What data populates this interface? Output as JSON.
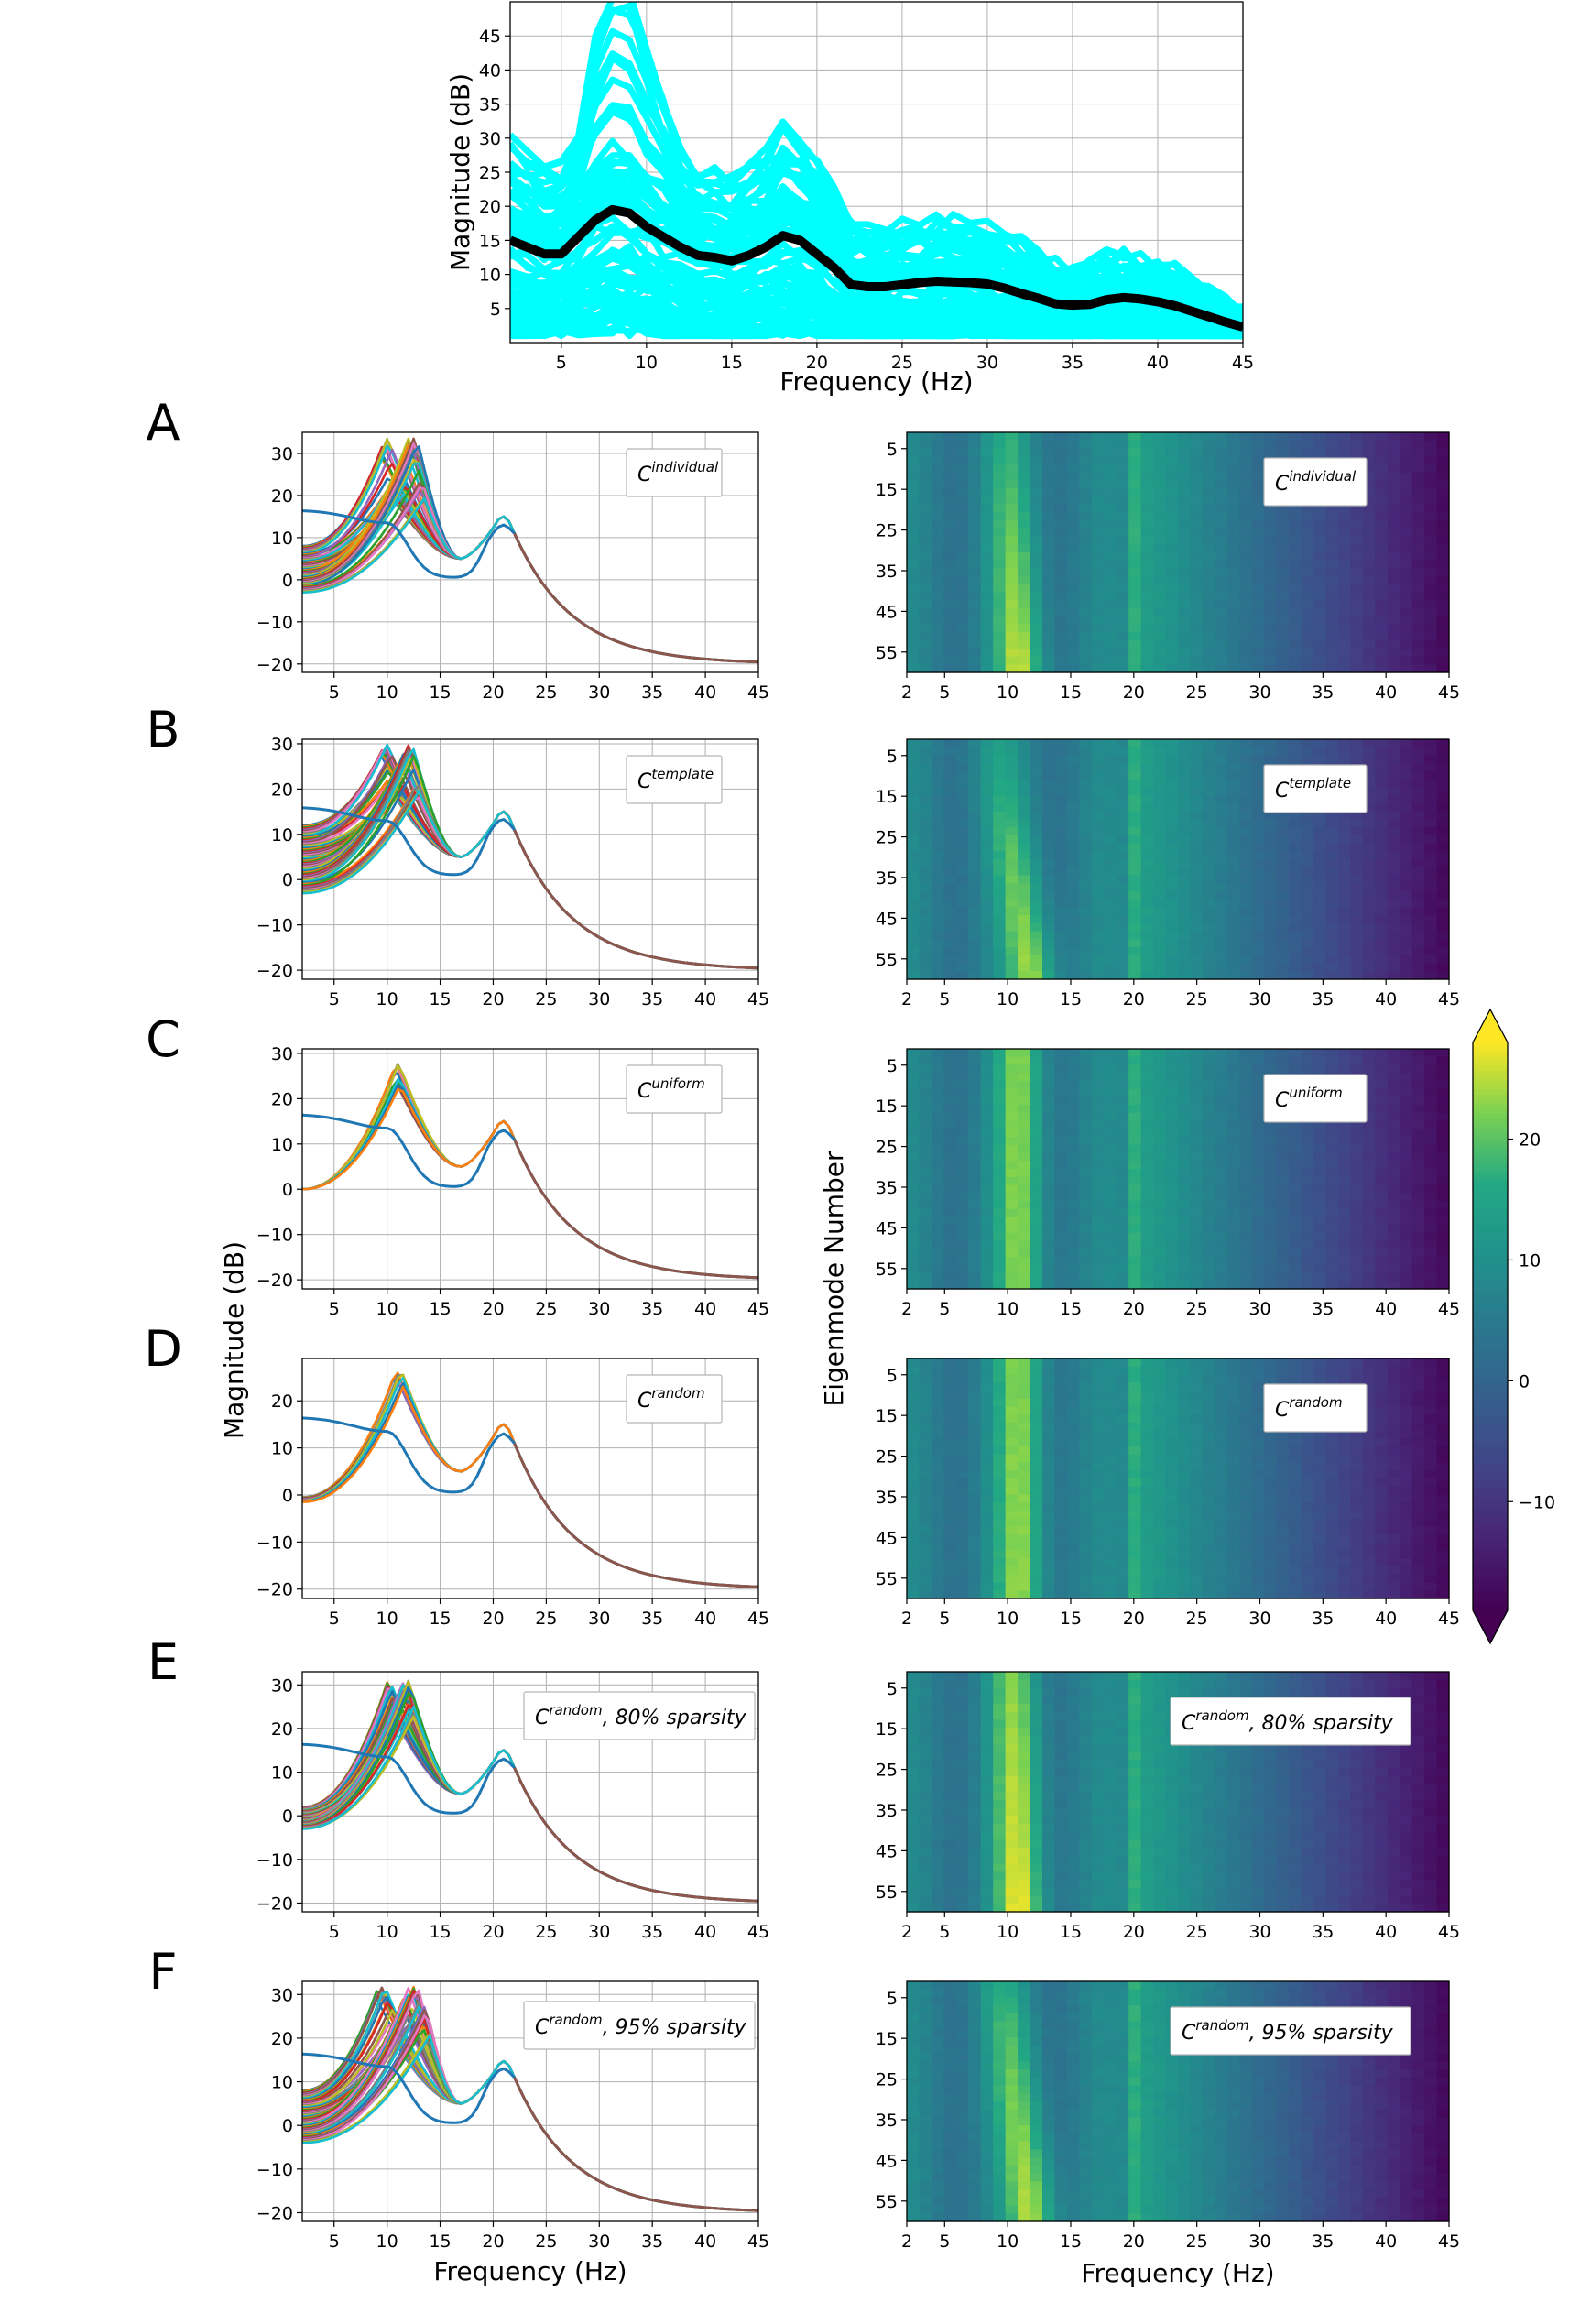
{
  "chart_data": [
    {
      "id": "top",
      "type": "line",
      "xlabel": "Frequency (Hz)",
      "ylabel": "Magnitude (dB)",
      "xlim": [
        2,
        45
      ],
      "ylim": [
        0,
        50
      ],
      "xticks": [
        5,
        10,
        15,
        20,
        25,
        30,
        35,
        40,
        45
      ],
      "yticks": [
        5,
        10,
        15,
        20,
        25,
        30,
        35,
        40,
        45
      ],
      "grid": true,
      "series": [
        {
          "role": "individual",
          "color": "#00ffff",
          "count": 68
        },
        {
          "role": "mean",
          "color": "#000000",
          "x": [
            2,
            3,
            4,
            5,
            6,
            7,
            8,
            9,
            10,
            11,
            12,
            13,
            14,
            15,
            16,
            17,
            18,
            19,
            20,
            21,
            22,
            23,
            24,
            25,
            26,
            27,
            28,
            29,
            30,
            31,
            32,
            33,
            34,
            35,
            36,
            37,
            38,
            39,
            40,
            41,
            42,
            43,
            44,
            45
          ],
          "y": [
            15,
            14,
            13,
            13,
            15.5,
            18,
            19.5,
            19,
            17,
            15.5,
            14,
            12.8,
            12.5,
            12,
            12.8,
            14,
            15.7,
            15,
            13,
            11,
            8.5,
            8.2,
            8.2,
            8.5,
            8.8,
            9,
            8.9,
            8.8,
            8.6,
            8,
            7.2,
            6.5,
            5.7,
            5.5,
            5.6,
            6.3,
            6.6,
            6.4,
            6,
            5.4,
            4.6,
            3.8,
            3,
            2.3
          ]
        }
      ]
    },
    {
      "id": "A",
      "label": "A",
      "type": "line",
      "legend": {
        "base": "C",
        "sup": "individual",
        "suffix": ""
      },
      "xlim": [
        2,
        45
      ],
      "ylim": [
        -22,
        35
      ],
      "xticks": [
        5,
        10,
        15,
        20,
        25,
        30,
        35,
        40,
        45
      ],
      "yticks": [
        -20,
        -10,
        0,
        10,
        20,
        30
      ],
      "grid": true,
      "bundle": {
        "count": 60,
        "low_start": -3,
        "high_start": 8,
        "peak_min": 19,
        "peak_max": 34,
        "peak_f_min": 9.5,
        "peak_f_max": 13.5,
        "second_peak": 13.5
      },
      "empirical": {
        "color": "#1f77b4",
        "start": 16.5,
        "alpha_peak": 13.5,
        "alpha_f": 10,
        "trough": 0.5,
        "beta_peak": 11.5
      }
    },
    {
      "id": "B",
      "label": "B",
      "type": "line",
      "legend": {
        "base": "C",
        "sup": "template",
        "suffix": ""
      },
      "xlim": [
        2,
        45
      ],
      "ylim": [
        -22,
        31
      ],
      "xticks": [
        5,
        10,
        15,
        20,
        25,
        30,
        35,
        40,
        45
      ],
      "yticks": [
        -20,
        -10,
        0,
        10,
        20,
        30
      ],
      "grid": true,
      "bundle": {
        "count": 60,
        "low_start": -3,
        "high_start": 12,
        "peak_min": 19,
        "peak_max": 30,
        "peak_f_min": 9.5,
        "peak_f_max": 13,
        "second_peak": 13.5
      },
      "empirical": {
        "color": "#1f77b4",
        "start": 16,
        "alpha_peak": 13,
        "alpha_f": 10,
        "trough": 1,
        "beta_peak": 12
      }
    },
    {
      "id": "C",
      "label": "C",
      "type": "line",
      "legend": {
        "base": "C",
        "sup": "uniform",
        "suffix": ""
      },
      "xlim": [
        2,
        45
      ],
      "ylim": [
        -22,
        31
      ],
      "xticks": [
        5,
        10,
        15,
        20,
        25,
        30,
        35,
        40,
        45
      ],
      "yticks": [
        -20,
        -10,
        0,
        10,
        20,
        30
      ],
      "grid": true,
      "bundle": {
        "count": 12,
        "low_start": 0,
        "high_start": 0,
        "peak_min": 23,
        "peak_max": 28,
        "peak_f_min": 10.8,
        "peak_f_max": 11.2,
        "second_peak": 13.5
      },
      "empirical": {
        "color": "#1f77b4",
        "start": 16.5,
        "alpha_peak": 13.5,
        "alpha_f": 10,
        "trough": 0.5,
        "beta_peak": 11.5
      }
    },
    {
      "id": "D",
      "label": "D",
      "type": "line",
      "legend": {
        "base": "C",
        "sup": "random",
        "suffix": ""
      },
      "xlim": [
        2,
        45
      ],
      "ylim": [
        -22,
        29
      ],
      "xticks": [
        5,
        10,
        15,
        20,
        25,
        30,
        35,
        40,
        45
      ],
      "yticks": [
        -20,
        -10,
        0,
        10,
        20
      ],
      "grid": true,
      "bundle": {
        "count": 12,
        "low_start": -1.5,
        "high_start": -0.5,
        "peak_min": 23,
        "peak_max": 27,
        "peak_f_min": 10.8,
        "peak_f_max": 11.5,
        "second_peak": 13.5
      },
      "empirical": {
        "color": "#1f77b4",
        "start": 16.5,
        "alpha_peak": 13.5,
        "alpha_f": 10,
        "trough": 0.5,
        "beta_peak": 11.5
      }
    },
    {
      "id": "E",
      "label": "E",
      "type": "line",
      "legend": {
        "base": "C",
        "sup": "random",
        "suffix": ", 80% sparsity"
      },
      "xlim": [
        2,
        45
      ],
      "ylim": [
        -22,
        33
      ],
      "xticks": [
        5,
        10,
        15,
        20,
        25,
        30,
        35,
        40,
        45
      ],
      "yticks": [
        -20,
        -10,
        0,
        10,
        20,
        30
      ],
      "grid": true,
      "bundle": {
        "count": 60,
        "low_start": -3,
        "high_start": 2,
        "peak_min": 22,
        "peak_max": 31,
        "peak_f_min": 10,
        "peak_f_max": 12.5,
        "second_peak": 13.5
      },
      "empirical": {
        "color": "#1f77b4",
        "start": 16.5,
        "alpha_peak": 13.5,
        "alpha_f": 10,
        "trough": 0.5,
        "beta_peak": 11.5
      }
    },
    {
      "id": "F",
      "label": "F",
      "type": "line",
      "legend": {
        "base": "C",
        "sup": "random",
        "suffix": ", 95% sparsity"
      },
      "xlabel": "Frequency (Hz)",
      "xlim": [
        2,
        45
      ],
      "ylim": [
        -22,
        33
      ],
      "xticks": [
        5,
        10,
        15,
        20,
        25,
        30,
        35,
        40,
        45
      ],
      "yticks": [
        -20,
        -10,
        0,
        10,
        20,
        30
      ],
      "grid": true,
      "bundle": {
        "count": 60,
        "low_start": -4,
        "high_start": 8,
        "peak_min": 20,
        "peak_max": 32,
        "peak_f_min": 9,
        "peak_f_max": 14,
        "second_peak": 13
      },
      "empirical": {
        "color": "#1f77b4",
        "start": 16.5,
        "alpha_peak": 13.5,
        "alpha_f": 10,
        "trough": 0.5,
        "beta_peak": 11.5
      }
    },
    {
      "id": "HA",
      "type": "heatmap",
      "legend": {
        "base": "C",
        "sup": "individual",
        "suffix": ""
      },
      "xlim": [
        2,
        45
      ],
      "ylim_modes": [
        1,
        60
      ],
      "xticks": [
        2,
        5,
        10,
        15,
        20,
        25,
        30,
        35,
        40,
        45
      ],
      "yticks": [
        5,
        15,
        25,
        35,
        45,
        55
      ],
      "alpha_center_top": 10,
      "alpha_center_bottom": 11,
      "peak_top": 17,
      "peak_bottom": 27
    },
    {
      "id": "HB",
      "type": "heatmap",
      "legend": {
        "base": "C",
        "sup": "template",
        "suffix": ""
      },
      "xlim": [
        2,
        45
      ],
      "ylim_modes": [
        1,
        60
      ],
      "xticks": [
        2,
        5,
        10,
        15,
        20,
        25,
        30,
        35,
        40,
        45
      ],
      "yticks": [
        5,
        15,
        25,
        35,
        45,
        55
      ],
      "alpha_center_top": 9,
      "alpha_center_bottom": 12,
      "peak_top": 14,
      "peak_bottom": 27
    },
    {
      "id": "HC",
      "type": "heatmap",
      "legend": {
        "base": "C",
        "sup": "uniform",
        "suffix": ""
      },
      "ylabel": "Eigenmode Number",
      "xlim": [
        2,
        45
      ],
      "ylim_modes": [
        1,
        60
      ],
      "xticks": [
        2,
        5,
        10,
        15,
        20,
        25,
        30,
        35,
        40,
        45
      ],
      "yticks": [
        5,
        15,
        25,
        35,
        45,
        55
      ],
      "alpha_center_top": 11,
      "alpha_center_bottom": 11,
      "peak_top": 24,
      "peak_bottom": 24
    },
    {
      "id": "HD",
      "type": "heatmap",
      "legend": {
        "base": "C",
        "sup": "random",
        "suffix": ""
      },
      "xlim": [
        2,
        45
      ],
      "ylim_modes": [
        1,
        60
      ],
      "xticks": [
        2,
        5,
        10,
        15,
        20,
        25,
        30,
        35,
        40,
        45
      ],
      "yticks": [
        5,
        15,
        25,
        35,
        45,
        55
      ],
      "alpha_center_top": 11,
      "alpha_center_bottom": 11,
      "peak_top": 24,
      "peak_bottom": 25
    },
    {
      "id": "HE",
      "type": "heatmap",
      "legend": {
        "base": "C",
        "sup": "random",
        "suffix": ", 80% sparsity"
      },
      "xlim": [
        2,
        45
      ],
      "ylim_modes": [
        1,
        60
      ],
      "xticks": [
        2,
        5,
        10,
        15,
        20,
        25,
        30,
        35,
        40,
        45
      ],
      "yticks": [
        5,
        15,
        25,
        35,
        45,
        55
      ],
      "alpha_center_top": 10.5,
      "alpha_center_bottom": 11,
      "peak_top": 23,
      "peak_bottom": 29
    },
    {
      "id": "HF",
      "type": "heatmap",
      "legend": {
        "base": "C",
        "sup": "random",
        "suffix": ", 95% sparsity"
      },
      "xlabel": "Frequency (Hz)",
      "xlim": [
        2,
        45
      ],
      "ylim_modes": [
        1,
        60
      ],
      "xticks": [
        2,
        5,
        10,
        15,
        20,
        25,
        30,
        35,
        40,
        45
      ],
      "yticks": [
        5,
        15,
        25,
        35,
        45,
        55
      ],
      "alpha_center_top": 9.5,
      "alpha_center_bottom": 12,
      "peak_top": 17,
      "peak_bottom": 28
    },
    {
      "id": "colorbar",
      "type": "colorbar",
      "colormap": "viridis",
      "vmin": -19,
      "vmax": 28,
      "ticks": [
        -10,
        0,
        10,
        20
      ],
      "extend": "both"
    }
  ]
}
